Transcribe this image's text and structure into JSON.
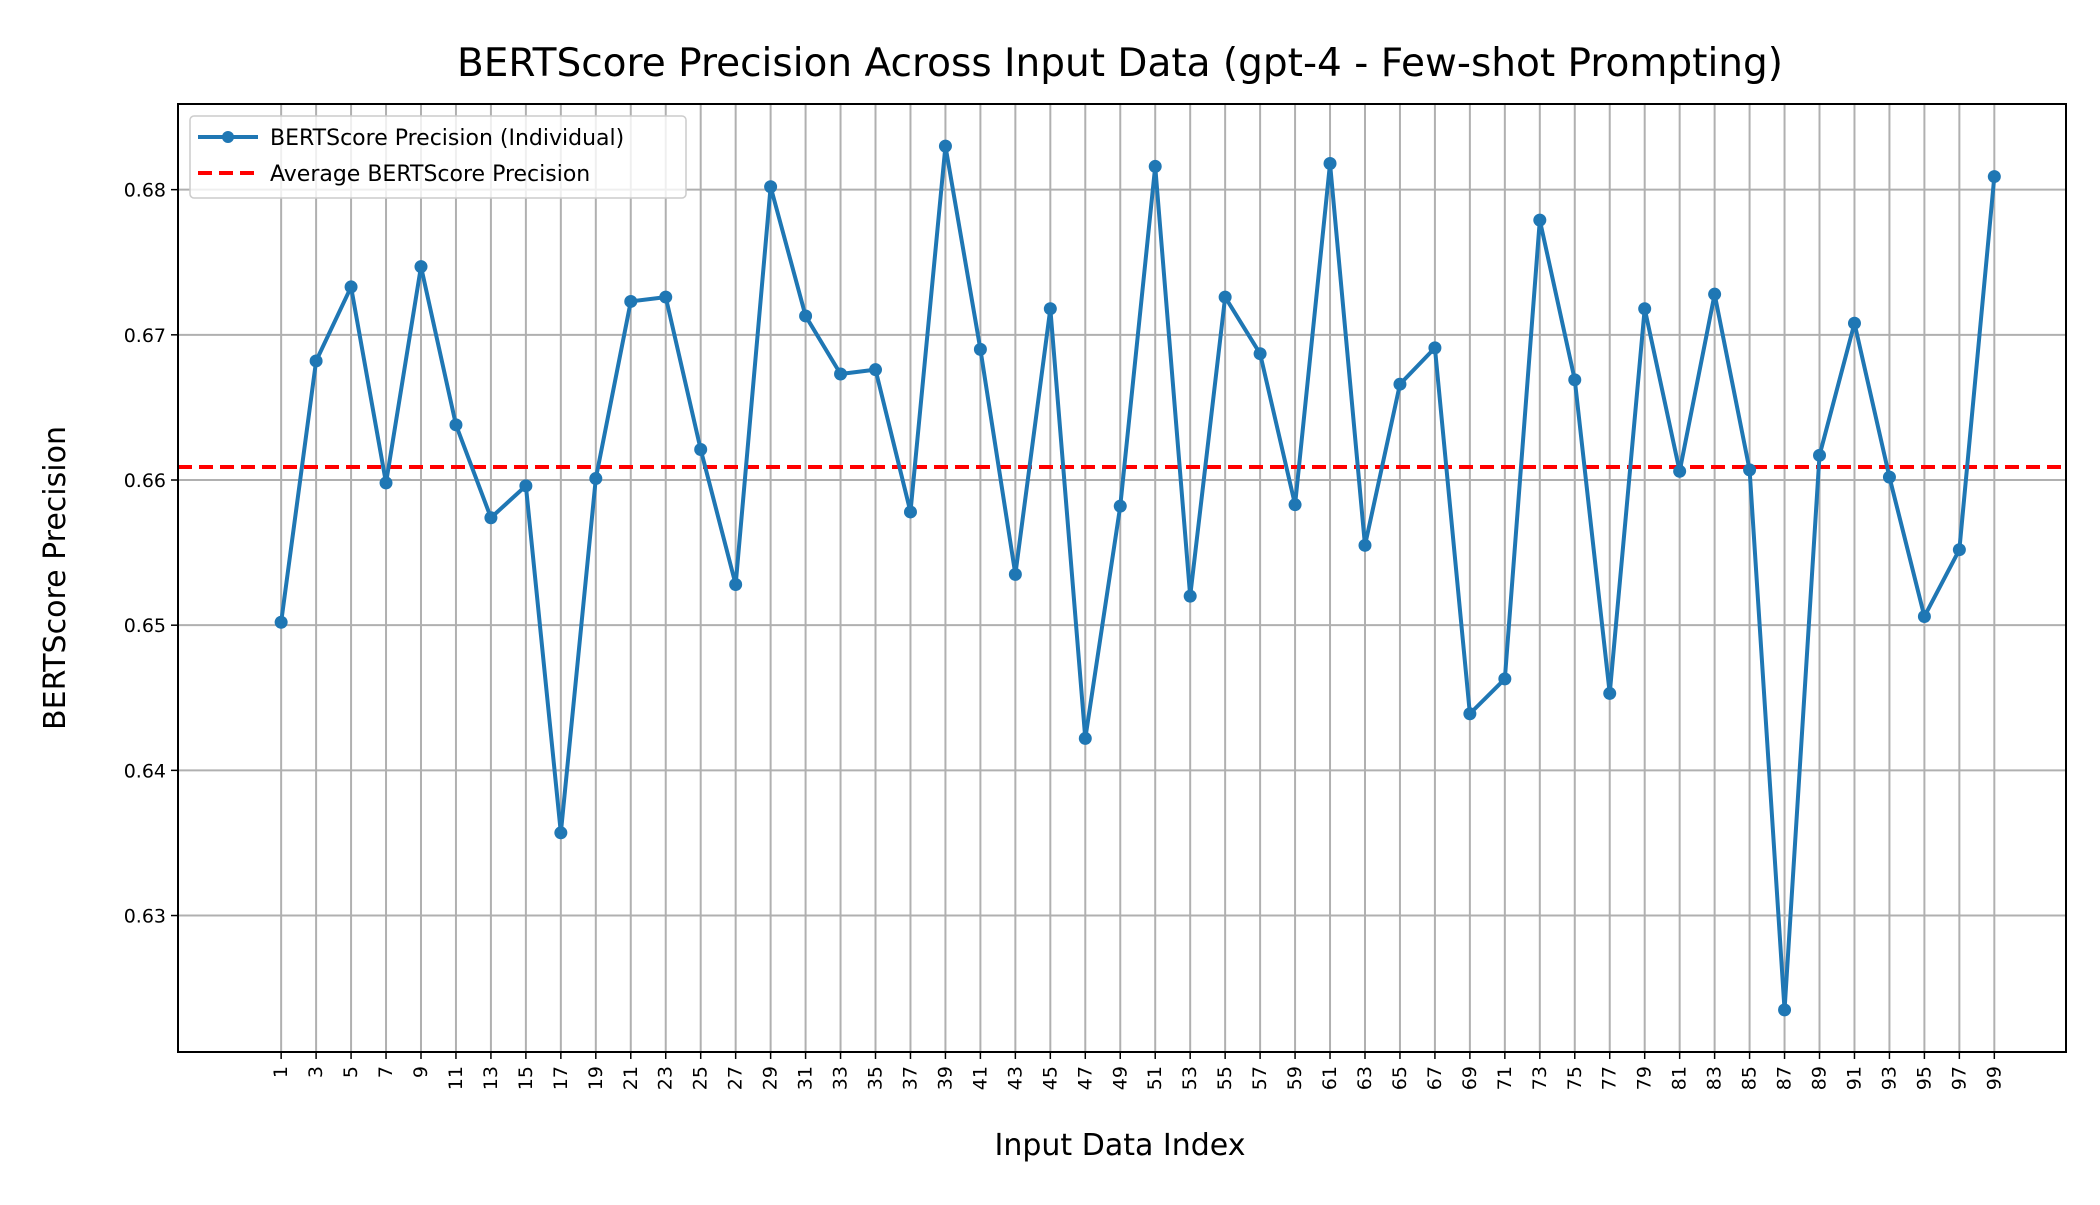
{
  "chart_data": {
    "type": "line",
    "title": "BERTScore Precision Across Input Data (gpt-4 - Few-shot Prompting)",
    "xlabel": "Input Data Index",
    "ylabel": "BERTScore Precision",
    "x": [
      1,
      3,
      5,
      7,
      9,
      11,
      13,
      15,
      17,
      19,
      21,
      23,
      25,
      27,
      29,
      31,
      33,
      35,
      37,
      39,
      41,
      43,
      45,
      47,
      49,
      51,
      53,
      55,
      57,
      59,
      61,
      63,
      65,
      67,
      69,
      71,
      73,
      75,
      77,
      79,
      81,
      83,
      85,
      87,
      89,
      91,
      93,
      95,
      97,
      99
    ],
    "x_tick_labels": [
      "1",
      "3",
      "5",
      "7",
      "9",
      "11",
      "13",
      "15",
      "17",
      "19",
      "21",
      "23",
      "25",
      "27",
      "29",
      "31",
      "33",
      "35",
      "37",
      "39",
      "41",
      "43",
      "45",
      "47",
      "49",
      "51",
      "53",
      "55",
      "57",
      "59",
      "61",
      "63",
      "65",
      "67",
      "69",
      "71",
      "73",
      "75",
      "77",
      "79",
      "81",
      "83",
      "85",
      "87",
      "89",
      "91",
      "93",
      "95",
      "97",
      "99"
    ],
    "y_ticks": [
      0.63,
      0.64,
      0.65,
      0.66,
      0.67,
      0.68
    ],
    "y_tick_labels": [
      "0.63",
      "0.64",
      "0.65",
      "0.66",
      "0.67",
      "0.68"
    ],
    "xlim": [
      -4.9,
      103.1
    ],
    "ylim": [
      0.6206,
      0.6859
    ],
    "grid": true,
    "legend_position": "upper-left",
    "series": [
      {
        "name": "BERTScore Precision (Individual)",
        "color": "#1f77b4",
        "values": [
          0.6502,
          0.6682,
          0.6733,
          0.6598,
          0.6747,
          0.6638,
          0.6574,
          0.6596,
          0.6357,
          0.6601,
          0.6723,
          0.6726,
          0.6621,
          0.6528,
          0.6802,
          0.6713,
          0.6673,
          0.6676,
          0.6578,
          0.683,
          0.669,
          0.6535,
          0.6718,
          0.6422,
          0.6582,
          0.6816,
          0.652,
          0.6726,
          0.6687,
          0.6583,
          0.6818,
          0.6555,
          0.6666,
          0.6691,
          0.6439,
          0.6463,
          0.6779,
          0.6669,
          0.6453,
          0.6718,
          0.6606,
          0.6728,
          0.6607,
          0.6235,
          0.6617,
          0.6708,
          0.6602,
          0.6506,
          0.6552,
          0.6809
        ]
      }
    ],
    "reference_lines": [
      {
        "name": "Average BERTScore Precision",
        "color": "#ff0000",
        "style": "dashed",
        "y": 0.6609
      }
    ]
  }
}
